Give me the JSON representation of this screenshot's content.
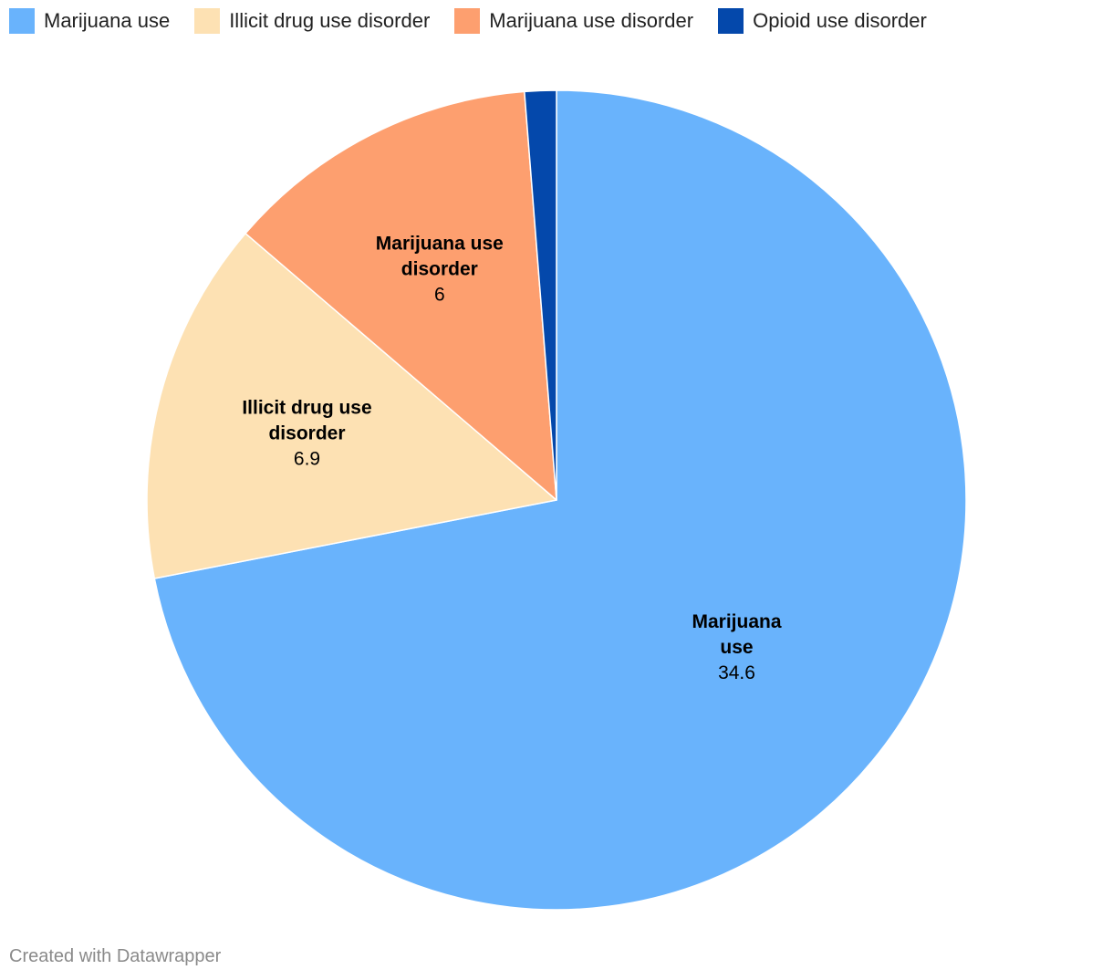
{
  "chart_data": {
    "type": "pie",
    "title": "",
    "categories": [
      "Marijuana use",
      "Illicit drug use disorder",
      "Marijuana use disorder",
      "Opioid use disorder"
    ],
    "values": [
      34.6,
      6.9,
      6,
      0.6
    ],
    "colors": [
      "#69b3fc",
      "#fde1b3",
      "#fd9f6f",
      "#0448ab"
    ],
    "slice_labels": [
      {
        "name_lines": [
          "Marijuana",
          "use"
        ],
        "value": "34.6"
      },
      {
        "name_lines": [
          "Illicit drug use",
          "disorder"
        ],
        "value": "6.9"
      },
      {
        "name_lines": [
          "Marijuana use",
          "disorder"
        ],
        "value": "6"
      },
      null
    ],
    "legend": {
      "placement": "top-left",
      "items": [
        "Marijuana use",
        "Illicit drug use disorder",
        "Marijuana use disorder",
        "Opioid use disorder"
      ]
    }
  },
  "credit": "Created with Datawrapper"
}
